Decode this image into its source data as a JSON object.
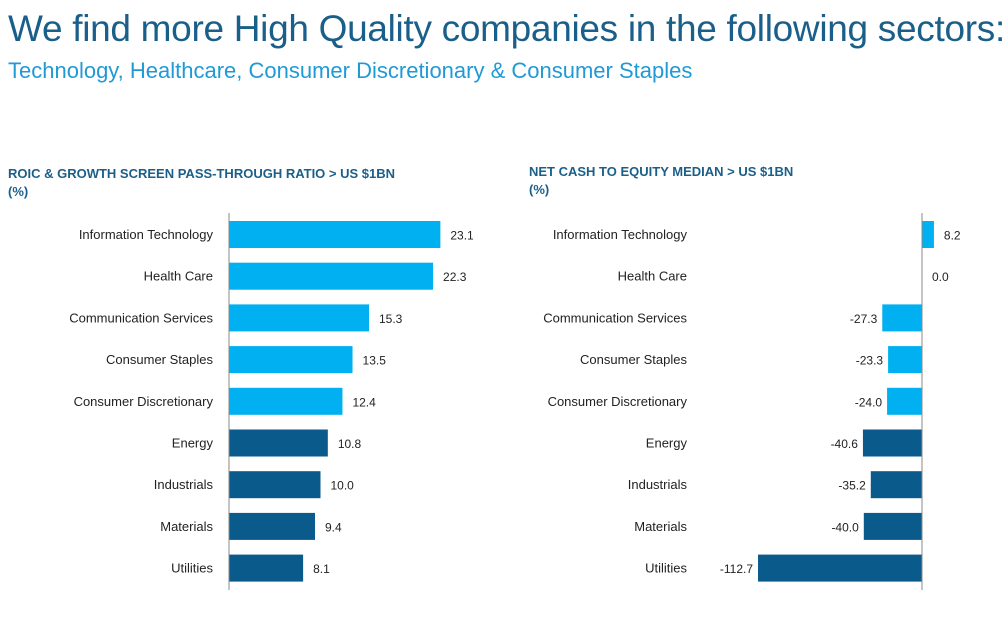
{
  "page": {
    "title": "We find more High Quality companies in the following sectors:",
    "subtitle": "Technology, Healthcare, Consumer Discretionary & Consumer Staples"
  },
  "colors": {
    "light_bar": "#00b0f0",
    "dark_bar": "#0a5a8c",
    "axis": "#8a8a8a",
    "title": "#1a5f8a",
    "subtitle": "#1f9ad6"
  },
  "chart_data": [
    {
      "type": "bar",
      "orientation": "horizontal",
      "title": "ROIC & GROWTH SCREEN PASS-THROUGH RATIO > US $1BN",
      "unit": "(%)",
      "categories": [
        "Information Technology",
        "Health Care",
        "Communication Services",
        "Consumer Staples",
        "Consumer Discretionary",
        "Energy",
        "Industrials",
        "Materials",
        "Utilities"
      ],
      "values": [
        23.1,
        22.3,
        15.3,
        13.5,
        12.4,
        10.8,
        10.0,
        9.4,
        8.1
      ],
      "value_labels": [
        "23.1",
        "22.3",
        "15.3",
        "13.5",
        "12.4",
        "10.8",
        "10.0",
        "9.4",
        "8.1"
      ],
      "highlight": [
        true,
        true,
        true,
        true,
        true,
        false,
        false,
        false,
        false
      ],
      "xlim": [
        0,
        25
      ],
      "grid": false
    },
    {
      "type": "bar",
      "orientation": "horizontal",
      "title": "NET CASH TO EQUITY MEDIAN > US $1BN",
      "unit": "(%)",
      "categories": [
        "Information Technology",
        "Health Care",
        "Communication Services",
        "Consumer Staples",
        "Consumer Discretionary",
        "Energy",
        "Industrials",
        "Materials",
        "Utilities"
      ],
      "values": [
        8.2,
        0.0,
        -27.3,
        -23.3,
        -24.0,
        -40.6,
        -35.2,
        -40.0,
        -112.7
      ],
      "value_labels": [
        "8.2",
        "0.0",
        "-27.3",
        "-23.3",
        "-24.0",
        "-40.6",
        "-35.2",
        "-40.0",
        "-112.7"
      ],
      "highlight": [
        true,
        true,
        true,
        true,
        true,
        false,
        false,
        false,
        false
      ],
      "xlim": [
        -115,
        10
      ],
      "grid": false
    }
  ]
}
